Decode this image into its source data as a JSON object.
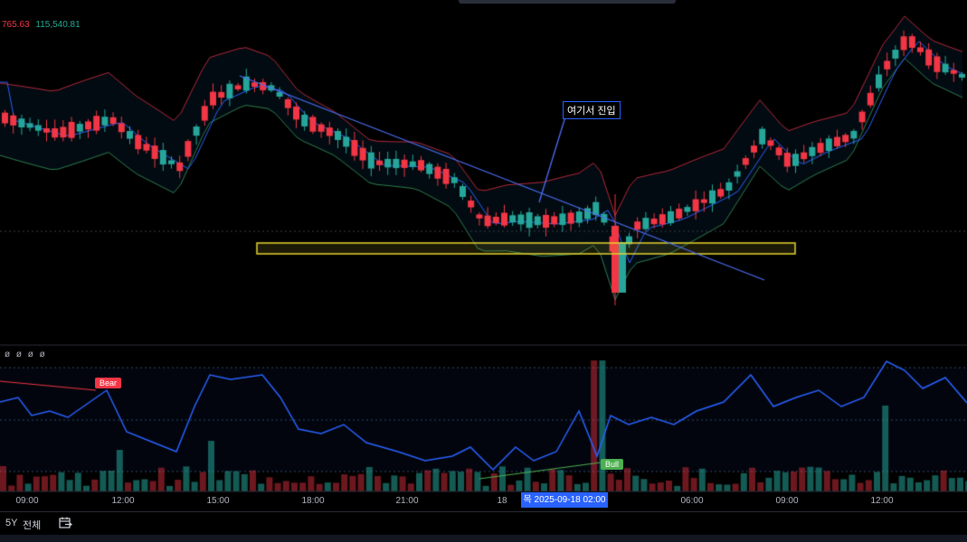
{
  "ohlc": {
    "value_a": "765.63",
    "value_b": "115,540.81"
  },
  "indicator_legend": "ø ø ø ø",
  "annotation_text": "여기서 진입",
  "signals": {
    "bear": "Bear",
    "bull": "Bull"
  },
  "time_axis": [
    "09:00",
    "12:00",
    "15:00",
    "18:00",
    "21:00",
    "18",
    "06:00",
    "09:00",
    "12:00"
  ],
  "cursor_time": "목 2025-09-18  02:00",
  "bottom_toolbar": {
    "range_5y": "5Y",
    "range_all": "전체",
    "goto_date_icon": "calendar-goto-icon"
  },
  "colors": {
    "bull": "#26a69a",
    "bear": "#f23645",
    "indicator_line": "#2962ff",
    "highlight_box": "#e5d430"
  }
}
